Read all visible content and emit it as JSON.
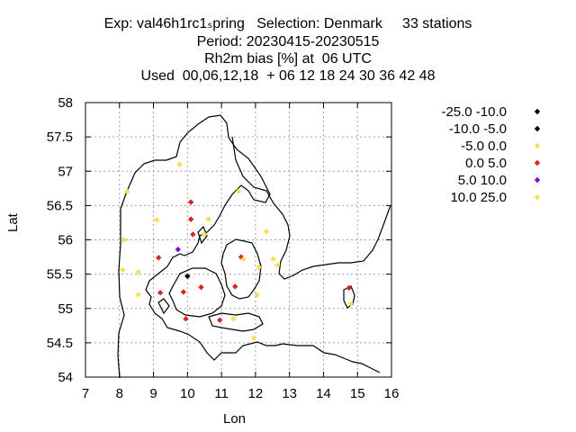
{
  "title_lines": [
    "Exp: val46h1rc1ₛpring   Selection: Denmark     33 stations",
    "Period: 20230415-20230515",
    "Rh2m bias [%] at  06 UTC",
    "Used  00,06,12,18  + 06 12 18 24 30 36 42 48"
  ],
  "chart_data": {
    "type": "scatter",
    "title": "Rh2m bias [%] at 06 UTC",
    "xlabel": "Lon",
    "ylabel": "Lat",
    "xlim": [
      7,
      16
    ],
    "ylim": [
      54,
      58
    ],
    "grid": true,
    "xticks": [
      "7",
      "8",
      "9",
      "10",
      "11",
      "12",
      "13",
      "14",
      "15",
      "16"
    ],
    "yticks": [
      "54",
      "54.5",
      "55",
      "55.5",
      "56",
      "56.5",
      "57",
      "57.5",
      "58"
    ],
    "legend": [
      {
        "label": "-25.0 -10.0",
        "color": "#000000"
      },
      {
        "label": "-10.0 -5.0",
        "color": "#000000"
      },
      {
        "label": "-5.0 0.0",
        "color": "#f5e050"
      },
      {
        "label": "0.0 5.0",
        "color": "#dd2222"
      },
      {
        "label": "5.0 10.0",
        "color": "#8a00cc"
      },
      {
        "label": "10.0 25.0",
        "color": "#f5e050"
      }
    ],
    "points": [
      {
        "lon": 9.77,
        "lat": 57.1,
        "class": 2
      },
      {
        "lon": 8.23,
        "lat": 56.7,
        "class": 2
      },
      {
        "lon": 11.5,
        "lat": 56.71,
        "class": 2
      },
      {
        "lon": 10.1,
        "lat": 56.55,
        "class": 3
      },
      {
        "lon": 9.1,
        "lat": 56.29,
        "class": 2
      },
      {
        "lon": 10.1,
        "lat": 56.3,
        "class": 3
      },
      {
        "lon": 10.62,
        "lat": 56.3,
        "class": 2
      },
      {
        "lon": 10.16,
        "lat": 56.08,
        "class": 3
      },
      {
        "lon": 10.5,
        "lat": 56.08,
        "class": 2
      },
      {
        "lon": 12.32,
        "lat": 56.12,
        "class": 2
      },
      {
        "lon": 8.12,
        "lat": 56.0,
        "class": 2
      },
      {
        "lon": 9.72,
        "lat": 55.86,
        "class": 4
      },
      {
        "lon": 9.15,
        "lat": 55.74,
        "class": 3
      },
      {
        "lon": 11.58,
        "lat": 55.75,
        "class": 3
      },
      {
        "lon": 11.65,
        "lat": 55.72,
        "class": 2
      },
      {
        "lon": 12.52,
        "lat": 55.72,
        "class": 2
      },
      {
        "lon": 12.65,
        "lat": 55.63,
        "class": 2
      },
      {
        "lon": 12.1,
        "lat": 55.6,
        "class": 2
      },
      {
        "lon": 8.1,
        "lat": 55.56,
        "class": 2
      },
      {
        "lon": 8.55,
        "lat": 55.53,
        "class": 2
      },
      {
        "lon": 10.0,
        "lat": 55.47,
        "class": 1
      },
      {
        "lon": 10.4,
        "lat": 55.31,
        "class": 3
      },
      {
        "lon": 11.4,
        "lat": 55.32,
        "class": 3
      },
      {
        "lon": 9.2,
        "lat": 55.23,
        "class": 3
      },
      {
        "lon": 9.88,
        "lat": 55.24,
        "class": 3
      },
      {
        "lon": 8.55,
        "lat": 55.2,
        "class": 2
      },
      {
        "lon": 12.05,
        "lat": 55.2,
        "class": 2
      },
      {
        "lon": 14.75,
        "lat": 55.3,
        "class": 3
      },
      {
        "lon": 14.8,
        "lat": 55.07,
        "class": 2
      },
      {
        "lon": 9.95,
        "lat": 54.85,
        "class": 3
      },
      {
        "lon": 10.95,
        "lat": 54.83,
        "class": 3
      },
      {
        "lon": 11.35,
        "lat": 54.85,
        "class": 2
      },
      {
        "lon": 11.95,
        "lat": 54.57,
        "class": 2
      }
    ]
  }
}
